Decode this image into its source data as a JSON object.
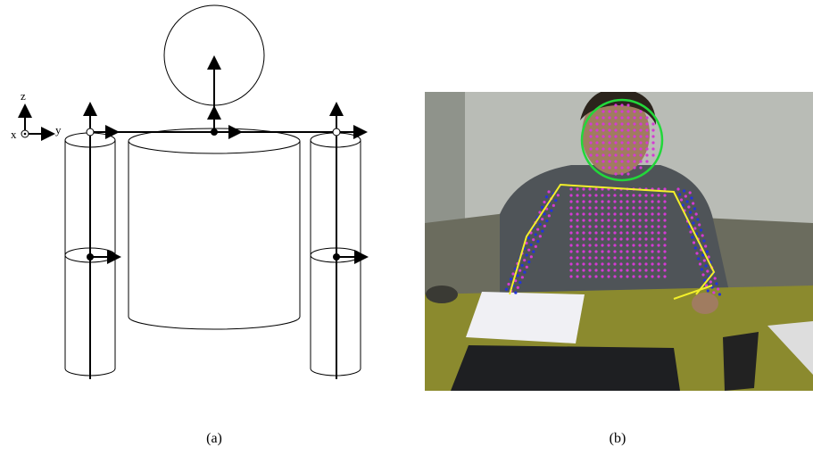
{
  "panels": [
    {
      "caption": "(a)",
      "axes": {
        "z": "z",
        "x": "x",
        "y": "y"
      }
    },
    {
      "caption": "(b)"
    }
  ]
}
